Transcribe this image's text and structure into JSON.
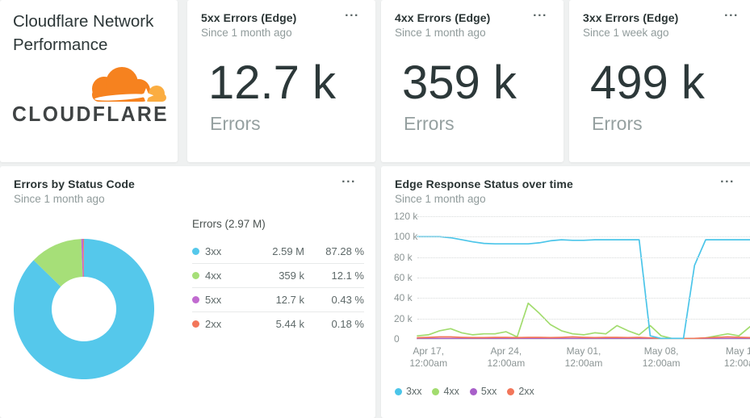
{
  "brand_card": {
    "title": "Cloudflare Network Performance",
    "logo_text": "CLOUDFLARE"
  },
  "stat_cards": [
    {
      "title": "5xx Errors (Edge)",
      "subtitle": "Since 1 month ago",
      "value": "12.7 k",
      "label": "Errors",
      "menu_label": "..."
    },
    {
      "title": "4xx Errors (Edge)",
      "subtitle": "Since 1 month ago",
      "value": "359 k",
      "label": "Errors",
      "menu_label": "..."
    },
    {
      "title": "3xx Errors (Edge)",
      "subtitle": "Since 1 week ago",
      "value": "499 k",
      "label": "Errors",
      "menu_label": "..."
    }
  ],
  "donut_card": {
    "title": "Errors by Status Code",
    "subtitle": "Since 1 month ago",
    "menu_label": "...",
    "legend_title": "Errors (2.97 M)"
  },
  "timeseries_card": {
    "title": "Edge Response Status over time",
    "subtitle": "Since 1 month ago",
    "menu_label": "..."
  },
  "colors": {
    "status_3xx": "#4bc5e9",
    "status_4xx": "#a2dc6e",
    "status_5xx": "#a85fc9",
    "status_2xx": "#f2765a",
    "cloudflare_orange": "#f6821f",
    "cloudflare_light_orange": "#fbad41"
  },
  "chart_data": [
    {
      "type": "pie",
      "title": "Errors by Status Code",
      "subtitle": "Since 1 month ago",
      "legend_title": "Errors (2.97 M)",
      "total_text": "2.97 M",
      "donut_hole_ratio": 0.46,
      "slices": [
        {
          "label": "3xx",
          "value": 2590000,
          "value_text": "2.59 M",
          "percent": 87.28,
          "percent_text": "87.28 %",
          "color": "#55c8eb"
        },
        {
          "label": "4xx",
          "value": 359000,
          "value_text": "359 k",
          "percent": 12.1,
          "percent_text": "12.1 %",
          "color": "#a6df78"
        },
        {
          "label": "5xx",
          "value": 12700,
          "value_text": "12.7 k",
          "percent": 0.43,
          "percent_text": "0.43 %",
          "color": "#c16bd0"
        },
        {
          "label": "2xx",
          "value": 5440,
          "value_text": "5.44 k",
          "percent": 0.18,
          "percent_text": "0.18 %",
          "color": "#f2765a"
        }
      ]
    },
    {
      "type": "line",
      "title": "Edge Response Status over time",
      "subtitle": "Since 1 month ago",
      "ylim": [
        0,
        120000
      ],
      "y_ticks": [
        "0",
        "20 k",
        "40 k",
        "60 k",
        "80 k",
        "100 k",
        "120 k"
      ],
      "grid": "horizontal-dotted",
      "days_total": 30,
      "x_ticks": [
        {
          "day": 1,
          "line1": "Apr 17,",
          "line2": "12:00am"
        },
        {
          "day": 8,
          "line1": "Apr 24,",
          "line2": "12:00am"
        },
        {
          "day": 15,
          "line1": "May 01,",
          "line2": "12:00am"
        },
        {
          "day": 22,
          "line1": "May 08,",
          "line2": "12:00am"
        },
        {
          "day": 29,
          "line1": "May 1",
          "line2": "12:00a"
        }
      ],
      "legend": [
        "3xx",
        "4xx",
        "5xx",
        "2xx"
      ],
      "series": [
        {
          "name": "3xx",
          "color": "#4bc5e9",
          "values_k": [
            100,
            100,
            100,
            99,
            97,
            95,
            93.5,
            93,
            93,
            93,
            93,
            94,
            96,
            97,
            96.5,
            96.5,
            97,
            97,
            97,
            97,
            97,
            3,
            0.5,
            0.5,
            0.5,
            72,
            97,
            97,
            97,
            97,
            97
          ]
        },
        {
          "name": "4xx",
          "color": "#a2dc6e",
          "values_k": [
            3,
            4,
            8,
            10,
            6,
            4,
            5,
            5,
            7,
            2,
            35,
            25,
            14,
            8,
            5,
            4,
            6,
            5,
            13,
            8,
            4,
            13,
            3,
            0.3,
            0.3,
            0.3,
            1,
            3,
            5,
            3,
            12
          ]
        },
        {
          "name": "5xx",
          "color": "#a85fc9",
          "values_k": [
            0.3,
            0.3,
            0.3,
            0.3,
            0.3,
            0.3,
            0.3,
            0.3,
            0.3,
            0.3,
            0.3,
            0.3,
            0.3,
            0.3,
            0.3,
            0.3,
            0.3,
            0.3,
            0.3,
            0.3,
            0.3,
            0.2,
            0.1,
            0.1,
            0.1,
            0.2,
            0.3,
            0.3,
            0.3,
            0.3,
            0.3
          ]
        },
        {
          "name": "2xx",
          "color": "#f2765a",
          "values_k": [
            1.2,
            1.5,
            2,
            2,
            1.5,
            1.3,
            1.3,
            1.5,
            1.5,
            1.3,
            1.5,
            1.5,
            1.3,
            1.5,
            2,
            1.5,
            1.3,
            1.5,
            1.5,
            1.3,
            1.5,
            1,
            0.4,
            0.3,
            0.3,
            0.5,
            1,
            1.5,
            2,
            1.6,
            1.3
          ]
        }
      ]
    }
  ]
}
